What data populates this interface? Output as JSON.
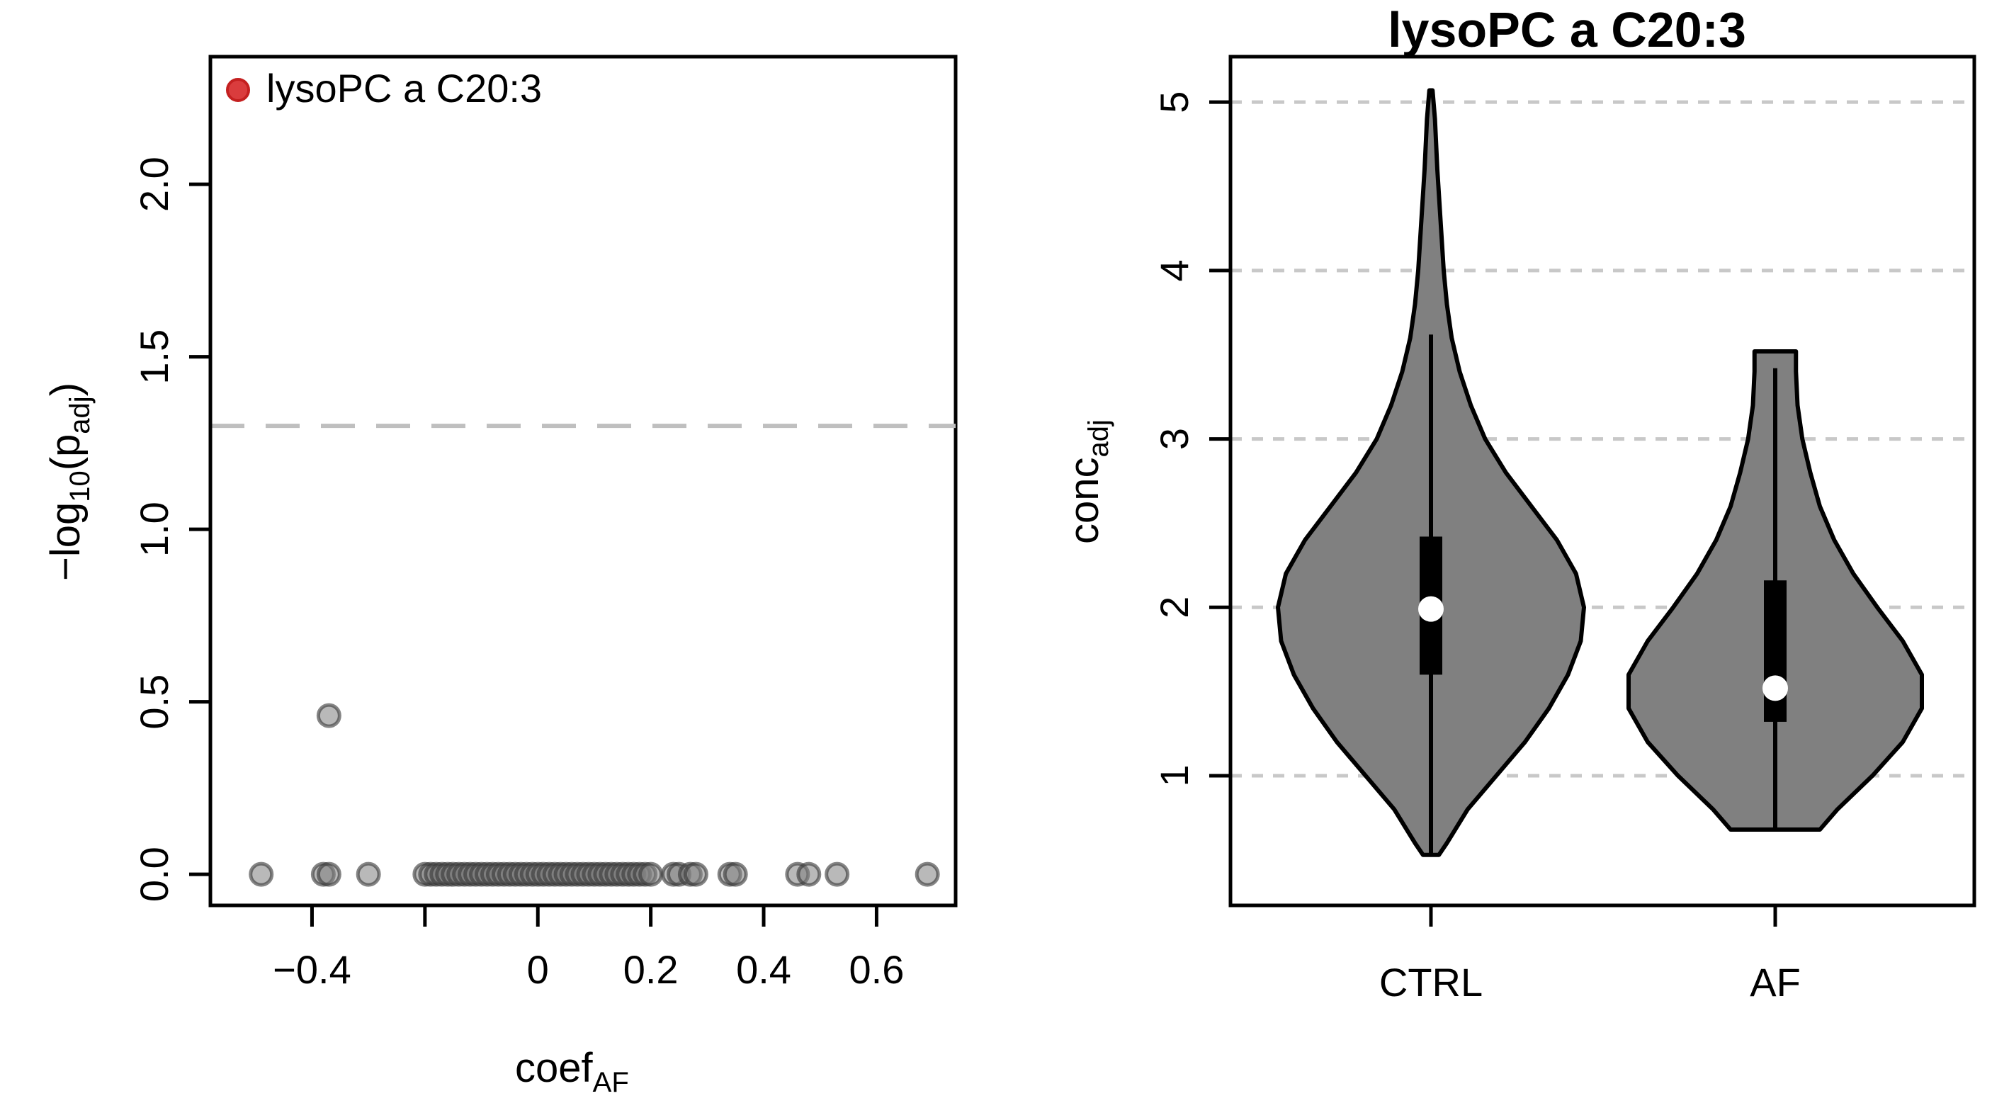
{
  "chart_data": [
    {
      "type": "scatter",
      "title": "",
      "xlabel": {
        "main": "coef",
        "sub": "AF"
      },
      "ylabel": {
        "prefix": "−log",
        "sub1": "10",
        "mid": "(p",
        "sub2": "adj",
        "suffix": ")"
      },
      "xlim": [
        -0.58,
        0.74
      ],
      "ylim": [
        -0.09,
        2.37
      ],
      "xticks": [
        -0.4,
        -0.2,
        0,
        0.2,
        0.4,
        0.6
      ],
      "xtick_labels": [
        "−0.4",
        "",
        "0",
        "0.2",
        "0.4",
        "0.6"
      ],
      "yticks": [
        0,
        0.5,
        1.0,
        1.5,
        2.0
      ],
      "ytick_labels": [
        "0.0",
        "0.5",
        "1.0",
        "1.5",
        "2.0"
      ],
      "threshold_line": {
        "y": 1.3,
        "style": "dashed",
        "color": "#bbbbbb"
      },
      "legend": {
        "position": "top-left",
        "label": "lysoPC a C20:3",
        "marker_color": "#d62728"
      },
      "marker_color": "#808080",
      "points": [
        {
          "x": -0.49,
          "y": 0
        },
        {
          "x": -0.38,
          "y": 0
        },
        {
          "x": -0.37,
          "y": 0
        },
        {
          "x": -0.3,
          "y": 0
        },
        {
          "x": -0.37,
          "y": 0.46
        },
        {
          "x": -0.2,
          "y": 0
        },
        {
          "x": -0.19,
          "y": 0
        },
        {
          "x": -0.18,
          "y": 0
        },
        {
          "x": -0.17,
          "y": 0
        },
        {
          "x": -0.16,
          "y": 0
        },
        {
          "x": -0.15,
          "y": 0
        },
        {
          "x": -0.14,
          "y": 0
        },
        {
          "x": -0.13,
          "y": 0
        },
        {
          "x": -0.12,
          "y": 0
        },
        {
          "x": -0.11,
          "y": 0
        },
        {
          "x": -0.1,
          "y": 0
        },
        {
          "x": -0.09,
          "y": 0
        },
        {
          "x": -0.08,
          "y": 0
        },
        {
          "x": -0.07,
          "y": 0
        },
        {
          "x": -0.06,
          "y": 0
        },
        {
          "x": -0.05,
          "y": 0
        },
        {
          "x": -0.04,
          "y": 0
        },
        {
          "x": -0.03,
          "y": 0
        },
        {
          "x": -0.02,
          "y": 0
        },
        {
          "x": -0.01,
          "y": 0
        },
        {
          "x": 0.0,
          "y": 0
        },
        {
          "x": 0.01,
          "y": 0
        },
        {
          "x": 0.02,
          "y": 0
        },
        {
          "x": 0.03,
          "y": 0
        },
        {
          "x": 0.04,
          "y": 0
        },
        {
          "x": 0.05,
          "y": 0
        },
        {
          "x": 0.06,
          "y": 0
        },
        {
          "x": 0.07,
          "y": 0
        },
        {
          "x": 0.08,
          "y": 0
        },
        {
          "x": 0.09,
          "y": 0
        },
        {
          "x": 0.1,
          "y": 0
        },
        {
          "x": 0.11,
          "y": 0
        },
        {
          "x": 0.12,
          "y": 0
        },
        {
          "x": 0.13,
          "y": 0
        },
        {
          "x": 0.14,
          "y": 0
        },
        {
          "x": 0.15,
          "y": 0
        },
        {
          "x": 0.16,
          "y": 0
        },
        {
          "x": 0.17,
          "y": 0
        },
        {
          "x": 0.18,
          "y": 0
        },
        {
          "x": 0.19,
          "y": 0
        },
        {
          "x": 0.2,
          "y": 0
        },
        {
          "x": 0.24,
          "y": 0
        },
        {
          "x": 0.25,
          "y": 0
        },
        {
          "x": 0.27,
          "y": 0
        },
        {
          "x": 0.28,
          "y": 0
        },
        {
          "x": 0.34,
          "y": 0
        },
        {
          "x": 0.35,
          "y": 0
        },
        {
          "x": 0.46,
          "y": 0
        },
        {
          "x": 0.48,
          "y": 0
        },
        {
          "x": 0.53,
          "y": 0
        },
        {
          "x": 0.69,
          "y": 0
        }
      ]
    },
    {
      "type": "violin",
      "title": "lysoPC a C20:3",
      "xlabel": "",
      "ylabel": {
        "main": "conc",
        "sub": "adj"
      },
      "ylim": [
        0.23,
        5.27
      ],
      "yticks": [
        1,
        2,
        3,
        4,
        5
      ],
      "ytick_labels": [
        "1",
        "2",
        "3",
        "4",
        "5"
      ],
      "grid": "horizontal-dashed",
      "categories": [
        "CTRL",
        "AF"
      ],
      "fill_color": "#808080",
      "groups": [
        {
          "name": "CTRL",
          "min": 0.53,
          "max": 5.07,
          "q1": 1.6,
          "median": 1.99,
          "q3": 2.42,
          "whisker_low": 0.53,
          "whisker_high": 3.62,
          "density_profile": [
            [
              0.53,
              0.05
            ],
            [
              0.6,
              0.1
            ],
            [
              0.8,
              0.23
            ],
            [
              1.0,
              0.41
            ],
            [
              1.2,
              0.59
            ],
            [
              1.4,
              0.74
            ],
            [
              1.6,
              0.86
            ],
            [
              1.8,
              0.94
            ],
            [
              2.0,
              0.96
            ],
            [
              2.2,
              0.91
            ],
            [
              2.4,
              0.79
            ],
            [
              2.6,
              0.63
            ],
            [
              2.8,
              0.47
            ],
            [
              3.0,
              0.34
            ],
            [
              3.2,
              0.25
            ],
            [
              3.4,
              0.18
            ],
            [
              3.6,
              0.13
            ],
            [
              3.8,
              0.1
            ],
            [
              4.0,
              0.08
            ],
            [
              4.3,
              0.06
            ],
            [
              4.6,
              0.04
            ],
            [
              4.9,
              0.025
            ],
            [
              5.07,
              0.01
            ]
          ]
        },
        {
          "name": "AF",
          "min": 0.68,
          "max": 3.52,
          "q1": 1.32,
          "median": 1.52,
          "q3": 2.16,
          "whisker_low": 0.68,
          "whisker_high": 3.42,
          "density_profile": [
            [
              0.68,
              0.28
            ],
            [
              0.8,
              0.39
            ],
            [
              1.0,
              0.61
            ],
            [
              1.2,
              0.8
            ],
            [
              1.4,
              0.92
            ],
            [
              1.6,
              0.92
            ],
            [
              1.8,
              0.8
            ],
            [
              2.0,
              0.64
            ],
            [
              2.2,
              0.49
            ],
            [
              2.4,
              0.37
            ],
            [
              2.6,
              0.28
            ],
            [
              2.8,
              0.22
            ],
            [
              3.0,
              0.17
            ],
            [
              3.2,
              0.14
            ],
            [
              3.4,
              0.13
            ],
            [
              3.52,
              0.13
            ]
          ]
        }
      ]
    }
  ]
}
